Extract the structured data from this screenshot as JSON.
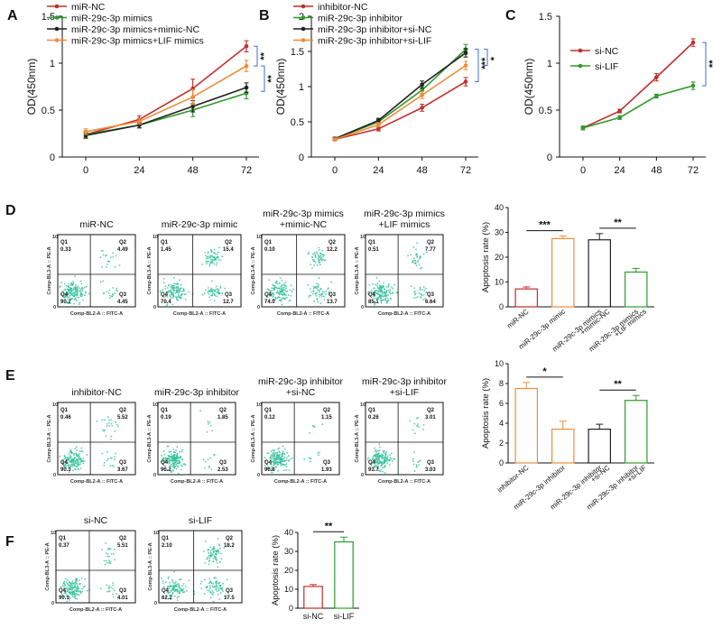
{
  "panels": {
    "A": {
      "label": "A"
    },
    "B": {
      "label": "B"
    },
    "C": {
      "label": "C"
    },
    "D": {
      "label": "D"
    },
    "E": {
      "label": "E"
    },
    "F": {
      "label": "F"
    }
  },
  "colors": {
    "red": "#c0302b",
    "green": "#2f9a2c",
    "black": "#222222",
    "orange": "#f08c3a",
    "bracket": "#3b6fd0",
    "flow_cells": "#2fbf9a"
  },
  "chart_data": [
    {
      "id": "A",
      "type": "line",
      "x": [
        0,
        24,
        48,
        72
      ],
      "ylim": [
        0,
        1.5
      ],
      "yticks": [
        0,
        0.5,
        1.0,
        1.5
      ],
      "ytick_labels": [
        "0",
        "0.5",
        "1",
        "1.5"
      ],
      "ylabel": "OD(450nm)",
      "xlabel": "",
      "series": [
        {
          "name": "miR-NC",
          "color": "red",
          "values": [
            0.24,
            0.4,
            0.73,
            1.18
          ],
          "err": [
            0.03,
            0.04,
            0.1,
            0.06
          ]
        },
        {
          "name": "miR-29c-3p mimics",
          "color": "green",
          "values": [
            0.24,
            0.34,
            0.5,
            0.68
          ],
          "err": [
            0.03,
            0.03,
            0.07,
            0.06
          ]
        },
        {
          "name": "miR-29c-3p mimics+mimic-NC",
          "color": "black",
          "values": [
            0.23,
            0.34,
            0.54,
            0.74
          ],
          "err": [
            0.03,
            0.03,
            0.06,
            0.05
          ]
        },
        {
          "name": "miR-29c-3p mimics+LIF mimics",
          "color": "orange",
          "values": [
            0.27,
            0.38,
            0.64,
            0.97
          ],
          "err": [
            0.03,
            0.03,
            0.08,
            0.06
          ]
        }
      ],
      "annotations": [
        "**",
        "**"
      ]
    },
    {
      "id": "B",
      "type": "line",
      "x": [
        0,
        24,
        48,
        72
      ],
      "ylim": [
        0,
        2
      ],
      "yticks": [
        0,
        0.5,
        1.0,
        1.5,
        2.0
      ],
      "ytick_labels": [
        "0",
        "0.5",
        "1",
        "1.5",
        "2"
      ],
      "ylabel": "OD(450nm)",
      "xlabel": "",
      "series": [
        {
          "name": "inhibitor-NC",
          "color": "red",
          "values": [
            0.25,
            0.4,
            0.7,
            1.07
          ],
          "err": [
            0.02,
            0.03,
            0.05,
            0.06
          ]
        },
        {
          "name": "miR-29c-3p inhibitor",
          "color": "green",
          "values": [
            0.26,
            0.5,
            0.95,
            1.53
          ],
          "err": [
            0.02,
            0.04,
            0.05,
            0.07
          ]
        },
        {
          "name": "miR-29c-3p inhibitor+si-NC",
          "color": "black",
          "values": [
            0.26,
            0.52,
            1.03,
            1.48
          ],
          "err": [
            0.02,
            0.03,
            0.05,
            0.06
          ]
        },
        {
          "name": "miR-29c-3p inhibitor+si-LIF",
          "color": "orange",
          "values": [
            0.25,
            0.46,
            0.88,
            1.3
          ],
          "err": [
            0.02,
            0.03,
            0.05,
            0.06
          ]
        }
      ],
      "annotations": [
        "***",
        "*"
      ]
    },
    {
      "id": "C",
      "type": "line",
      "x": [
        0,
        24,
        48,
        72
      ],
      "ylim": [
        0,
        1.5
      ],
      "yticks": [
        0,
        0.5,
        1.0,
        1.5
      ],
      "ytick_labels": [
        "0",
        "0.5",
        "1",
        "1.5"
      ],
      "ylabel": "OD(450nm)",
      "xlabel": "",
      "series": [
        {
          "name": "si-NC",
          "color": "red",
          "values": [
            0.31,
            0.49,
            0.85,
            1.22
          ],
          "err": [
            0.02,
            0.02,
            0.04,
            0.04
          ]
        },
        {
          "name": "si-LIF",
          "color": "green",
          "values": [
            0.31,
            0.42,
            0.65,
            0.76
          ],
          "err": [
            0.02,
            0.02,
            0.02,
            0.04
          ]
        }
      ],
      "annotations": [
        "**"
      ]
    },
    {
      "id": "D-bar",
      "type": "bar",
      "ylabel": "Apoptosis rate (%)",
      "ylim": [
        0,
        40
      ],
      "yticks": [
        0,
        10,
        20,
        30,
        40
      ],
      "ytick_labels": [
        "0",
        "10",
        "20",
        "30",
        "40"
      ],
      "categories": [
        "miR-NC",
        "miR-29c-3p mimic",
        "miR-29c-3p mimics +mimic-NC",
        "miR-29c-3p mimics +LIF mimics"
      ],
      "category_lines": [
        [
          "miR-NC"
        ],
        [
          "miR-29c-3p mimic"
        ],
        [
          "miR-29c-3p mimics",
          "+mimic-NC"
        ],
        [
          "miR-29c-3p mimics",
          "+LIF mimics"
        ]
      ],
      "colors": [
        "red",
        "orange",
        "black",
        "green"
      ],
      "values": [
        7.2,
        27.5,
        27.0,
        14.0
      ],
      "err": [
        0.8,
        1.0,
        2.5,
        1.5
      ],
      "sig": [
        {
          "from": 0,
          "to": 1,
          "label": "***"
        },
        {
          "from": 2,
          "to": 3,
          "label": "**"
        }
      ]
    },
    {
      "id": "E-bar",
      "type": "bar",
      "ylabel": "Apoptosis rate (%)",
      "ylim": [
        0,
        10
      ],
      "yticks": [
        0,
        2,
        4,
        6,
        8,
        10
      ],
      "ytick_labels": [
        "0",
        "2",
        "4",
        "6",
        "8",
        "10"
      ],
      "categories": [
        "inhibitor-NC",
        "miR-29c-3p inhibitor",
        "miR-29c-3p inhibitor +si-NC",
        "miR-29c-3p inhibitor +si-LIF"
      ],
      "category_lines": [
        [
          "inhibitor-NC"
        ],
        [
          "miR-29c-3p inhibitor"
        ],
        [
          "miR-29c-3p inhibitor",
          "+si-NC"
        ],
        [
          "miR-29c-3p inhibitor",
          "+si-LIF"
        ]
      ],
      "colors": [
        "orange",
        "orange",
        "black",
        "green"
      ],
      "values": [
        7.5,
        3.4,
        3.4,
        6.3
      ],
      "err": [
        0.6,
        0.8,
        0.5,
        0.5
      ],
      "sig": [
        {
          "from": 0,
          "to": 1,
          "label": "*"
        },
        {
          "from": 2,
          "to": 3,
          "label": "**"
        }
      ]
    },
    {
      "id": "F-bar",
      "type": "bar",
      "ylabel": "Apoptosis rate  (%)",
      "ylim": [
        0,
        40
      ],
      "yticks": [
        0,
        10,
        20,
        30,
        40
      ],
      "ytick_labels": [
        "0",
        "10",
        "20",
        "30",
        "40"
      ],
      "categories": [
        "si-NC",
        "si-LIF"
      ],
      "category_lines": [
        [
          "si-NC"
        ],
        [
          "si-LIF"
        ]
      ],
      "colors": [
        "red",
        "green"
      ],
      "values": [
        11.5,
        35.0
      ],
      "err": [
        1.0,
        2.5
      ],
      "sig": [
        {
          "from": 0,
          "to": 1,
          "label": "**"
        }
      ]
    }
  ],
  "flow": {
    "axis": {
      "x": "Comp-BL2-A :: FITC-A",
      "y": "Comp-BL3-A :: PE-A",
      "yalt": "Comp-BL3-A :: PE-A"
    },
    "tick_labels": [
      "10",
      "5",
      "10",
      "0"
    ],
    "D": [
      {
        "title": "miR-NC",
        "q1": "Q1",
        "q1v": "0.33",
        "q2": "Q2",
        "q2v": "4.49",
        "q3": "Q3",
        "q3v": "4.45",
        "q4": "Q4",
        "q4v": "90.7"
      },
      {
        "title": "miR-29c-3p mimic",
        "q1": "Q1",
        "q1v": "1.45",
        "q2": "Q2",
        "q2v": "15.4",
        "q3": "Q3",
        "q3v": "12.7",
        "q4": "Q4",
        "q4v": "70.4"
      },
      {
        "title": "miR-29c-3p mimics",
        "title2": "+mimic-NC",
        "q1": "Q1",
        "q1v": "0.10",
        "q2": "Q2",
        "q2v": "12.2",
        "q3": "Q3",
        "q3v": "13.7",
        "q4": "Q4",
        "q4v": "74.0"
      },
      {
        "title": "miR-29c-3p mimics",
        "title2": "+LIF mimics",
        "q1": "Q1",
        "q1v": "0.51",
        "q2": "Q2",
        "q2v": "7.77",
        "q3": "Q3",
        "q3v": "6.64",
        "q4": "Q4",
        "q4v": "85.1"
      }
    ],
    "E": [
      {
        "title": "inhibitor-NC",
        "q1": "Q1",
        "q1v": "0.46",
        "q2": "Q2",
        "q2v": "5.52",
        "q3": "Q3",
        "q3v": "3.67",
        "q4": "Q4",
        "q4v": "90.3"
      },
      {
        "title": "miR-29c-3p inhibitor",
        "q1": "Q1",
        "q1v": "0.19",
        "q2": "Q2",
        "q2v": "1.85",
        "q3": "Q3",
        "q3v": "2.53",
        "q4": "Q4",
        "q4v": "96.2"
      },
      {
        "title": "miR-29c-3p inhibitor",
        "title2": "+si-NC",
        "q1": "Q1",
        "q1v": "0.12",
        "q2": "Q2",
        "q2v": "1.15",
        "q3": "Q3",
        "q3v": "1.93",
        "q4": "Q4",
        "q4v": "96.8"
      },
      {
        "title": "miR-29c-3p inhibitor",
        "title2": "+si-LIF",
        "q1": "Q1",
        "q1v": "0.26",
        "q2": "Q2",
        "q2v": "3.01",
        "q3": "Q3",
        "q3v": "3.03",
        "q4": "Q4",
        "q4v": "93.7"
      }
    ],
    "F": [
      {
        "title": "si-NC",
        "q1": "Q1",
        "q1v": "0.37",
        "q2": "Q2",
        "q2v": "5.51",
        "q3": "Q3",
        "q3v": "4.01",
        "q4": "Q4",
        "q4v": "90.1"
      },
      {
        "title": "si-LIF",
        "q1": "Q1",
        "q1v": "2.10",
        "q2": "Q2",
        "q2v": "18.2",
        "q3": "Q3",
        "q3v": "17.5",
        "q4": "Q4",
        "q4v": "62.2"
      }
    ]
  }
}
